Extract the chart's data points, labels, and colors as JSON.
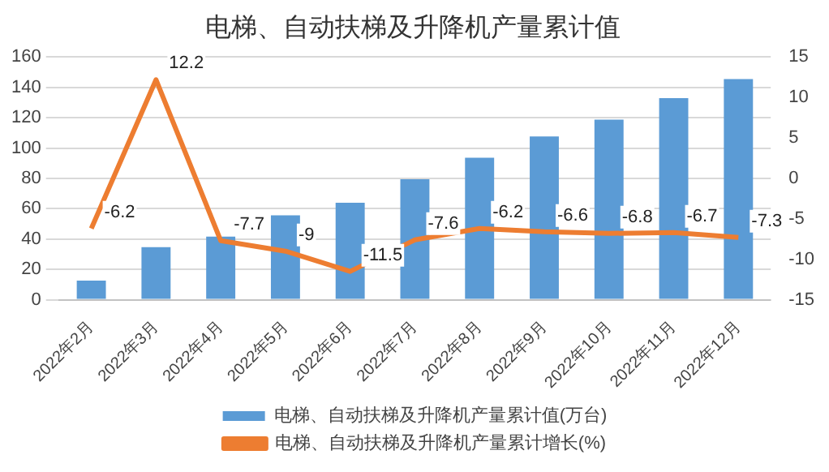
{
  "chart_data": {
    "type": "bar",
    "title": "电梯、自动扶梯及升降机产量累计值",
    "categories": [
      "2022年2月",
      "2022年3月",
      "2022年4月",
      "2022年5月",
      "2022年6月",
      "2022年7月",
      "2022年8月",
      "2022年9月",
      "2022年10月",
      "2022年11月",
      "2022年12月"
    ],
    "series": [
      {
        "name": "电梯、自动扶梯及升降机产量累计值(万台)",
        "color": "#5b9bd5",
        "values": [
          12.6,
          34.6,
          41.6,
          55.7,
          64,
          79.5,
          93.6,
          107.6,
          118.8,
          132.9,
          145.5
        ]
      },
      {
        "name": "电梯、自动扶梯及升降机产量累计增长(%)",
        "type": "line",
        "axis": "y2",
        "color": "#ed7d31",
        "values": [
          -6.2,
          12.2,
          -7.7,
          -9,
          -11.5,
          -7.6,
          -6.2,
          -6.6,
          -6.8,
          -6.7,
          -7.3
        ],
        "value_labels": [
          "-6.2",
          "12.2",
          "-7.7",
          "-9",
          "-11.5",
          "-7.6",
          "-6.2",
          "-6.6",
          "-6.8",
          "-6.7",
          "-7.3"
        ]
      }
    ],
    "ylim": [
      0,
      160
    ],
    "yticks": [
      0,
      20,
      40,
      60,
      80,
      100,
      120,
      140,
      160
    ],
    "y2lim": [
      -15,
      15
    ],
    "y2ticks": [
      -15,
      -10,
      -5,
      0,
      5,
      10,
      15
    ],
    "grid": "y",
    "legend": "bottom",
    "marker": "none"
  }
}
